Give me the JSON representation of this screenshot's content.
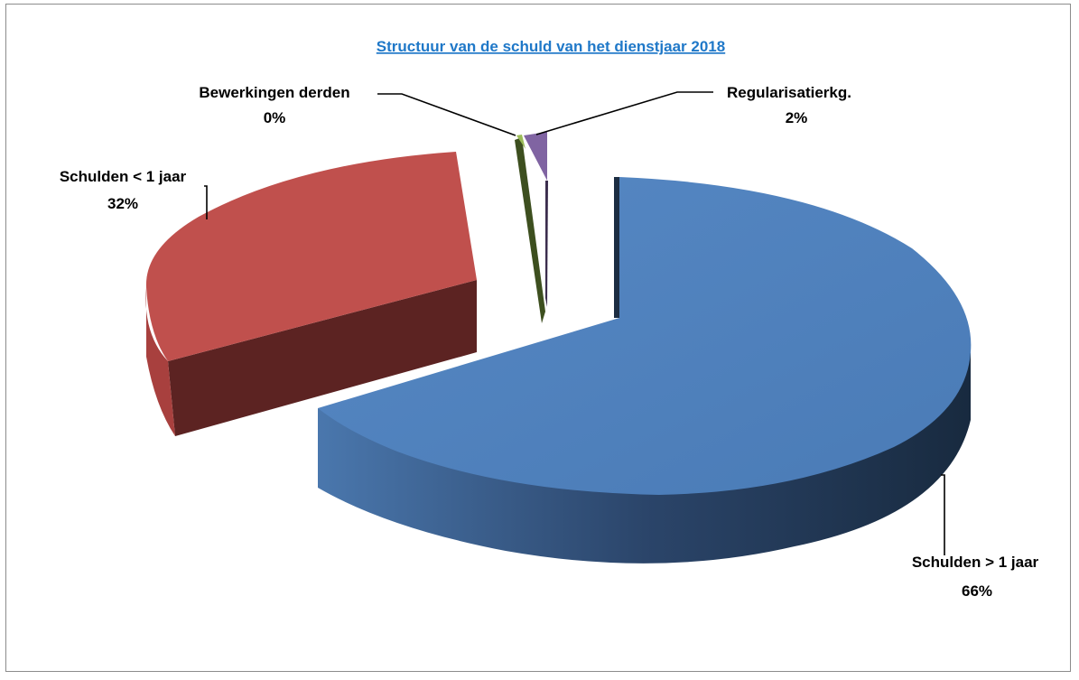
{
  "chart_data": {
    "type": "pie",
    "title": "Structuur van de schuld van het dienstjaar 2018",
    "title_color": "#1f78c8",
    "slices": [
      {
        "name": "Schulden > 1 jaar",
        "value": 66,
        "label_pct": "66%",
        "color": "#4f81bd",
        "dark": "#1c2d42"
      },
      {
        "name": "Schulden < 1 jaar",
        "value": 32,
        "label_pct": "32%",
        "color": "#c0504d",
        "dark": "#5c2322"
      },
      {
        "name": "Bewerkingen derden",
        "value": 0.3,
        "label_pct": "0%",
        "color": "#9bbb59",
        "dark": "#3d4f1f"
      },
      {
        "name": "Regularisatierkg.",
        "value": 2,
        "label_pct": "2%",
        "color": "#8064a2",
        "dark": "#3b2d4d"
      }
    ],
    "legend": "none",
    "style": "3d-exploded"
  }
}
